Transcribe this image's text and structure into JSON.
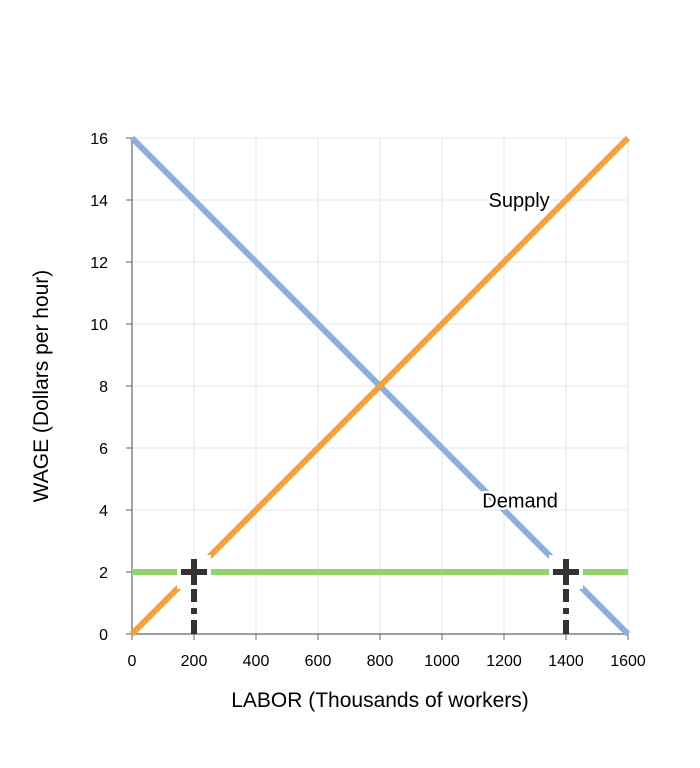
{
  "chart_data": {
    "type": "line",
    "xlabel": "LABOR (Thousands of workers)",
    "ylabel": "WAGE (Dollars per hour)",
    "xlim": [
      0,
      1600
    ],
    "ylim": [
      0,
      16
    ],
    "x_ticks": [
      0,
      200,
      400,
      600,
      800,
      1000,
      1200,
      1400,
      1600
    ],
    "y_ticks": [
      0,
      2,
      4,
      6,
      8,
      10,
      12,
      14,
      16
    ],
    "grid": true,
    "series": [
      {
        "name": "Demand",
        "color": "#8eaedb",
        "points": [
          [
            0,
            16
          ],
          [
            1600,
            0
          ]
        ]
      },
      {
        "name": "Supply",
        "color": "#f5a03a",
        "points": [
          [
            0,
            0
          ],
          [
            1600,
            16
          ]
        ]
      },
      {
        "name": "",
        "color": "#92d36e",
        "points": [
          [
            0,
            2
          ],
          [
            1600,
            2
          ]
        ]
      }
    ],
    "annotations": [
      {
        "text": "Supply",
        "x": 1150,
        "y": 14
      },
      {
        "text": "Demand",
        "x": 1130,
        "y": 4.3
      }
    ],
    "markers": [
      {
        "type": "cross",
        "x": 200,
        "y": 2,
        "color": "#333333"
      },
      {
        "type": "cross",
        "x": 1400,
        "y": 2,
        "color": "#333333"
      }
    ],
    "drop_lines": [
      {
        "x": 200,
        "from_y": 2,
        "to_y": 0,
        "style": "dash-dot",
        "color": "#333333"
      },
      {
        "x": 1400,
        "from_y": 2,
        "to_y": 0,
        "style": "dash-dot",
        "color": "#333333"
      }
    ]
  }
}
